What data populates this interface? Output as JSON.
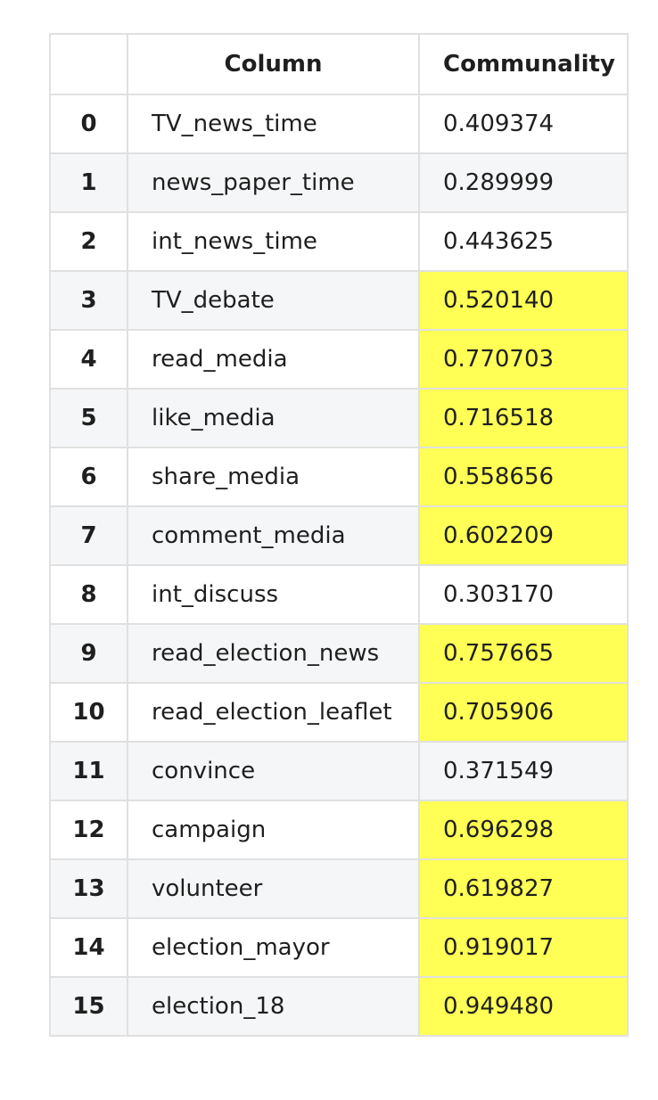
{
  "table": {
    "headers": {
      "index": "",
      "column": "Column",
      "communality": "Communality"
    },
    "highlight_color": "#ffff55",
    "rows": [
      {
        "index": "0",
        "column": "TV_news_time",
        "communality": "0.409374",
        "highlight": false
      },
      {
        "index": "1",
        "column": "news_paper_time",
        "communality": "0.289999",
        "highlight": false
      },
      {
        "index": "2",
        "column": "int_news_time",
        "communality": "0.443625",
        "highlight": false
      },
      {
        "index": "3",
        "column": "TV_debate",
        "communality": "0.520140",
        "highlight": true
      },
      {
        "index": "4",
        "column": "read_media",
        "communality": "0.770703",
        "highlight": true
      },
      {
        "index": "5",
        "column": "like_media",
        "communality": "0.716518",
        "highlight": true
      },
      {
        "index": "6",
        "column": "share_media",
        "communality": "0.558656",
        "highlight": true
      },
      {
        "index": "7",
        "column": "comment_media",
        "communality": "0.602209",
        "highlight": true
      },
      {
        "index": "8",
        "column": "int_discuss",
        "communality": "0.303170",
        "highlight": false
      },
      {
        "index": "9",
        "column": "read_election_news",
        "communality": "0.757665",
        "highlight": true
      },
      {
        "index": "10",
        "column": "read_election_leaflet",
        "communality": "0.705906",
        "highlight": true
      },
      {
        "index": "11",
        "column": "convince",
        "communality": "0.371549",
        "highlight": false
      },
      {
        "index": "12",
        "column": "campaign",
        "communality": "0.696298",
        "highlight": true
      },
      {
        "index": "13",
        "column": "volunteer",
        "communality": "0.619827",
        "highlight": true
      },
      {
        "index": "14",
        "column": "election_mayor",
        "communality": "0.919017",
        "highlight": true
      },
      {
        "index": "15",
        "column": "election_18",
        "communality": "0.949480",
        "highlight": true
      }
    ]
  }
}
